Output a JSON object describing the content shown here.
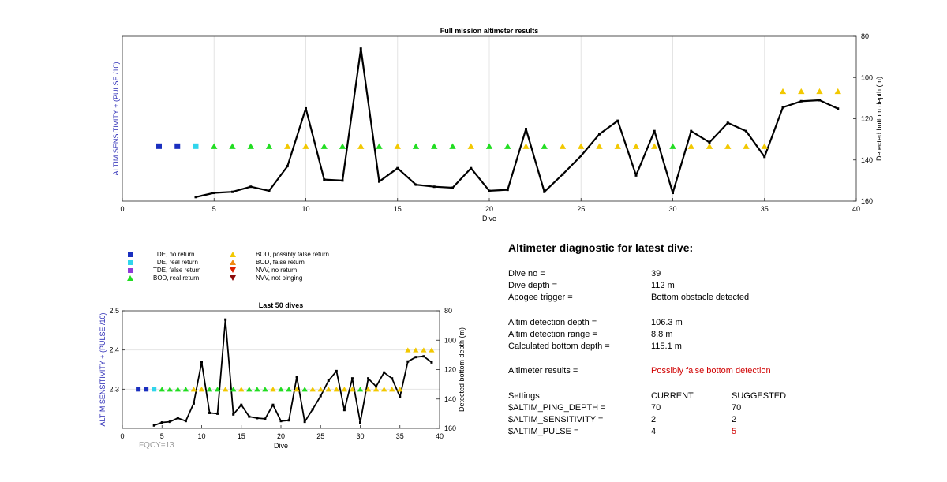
{
  "colors": {
    "tde_no_return": "#1a2fbf",
    "tde_real_return": "#30d5ec",
    "tde_false_return": "#8e3bd9",
    "bod_real_return": "#22dd22",
    "bod_possibly_false": "#f2c800",
    "bod_false_return": "#f08a12",
    "nvv_no_return": "#dd2200",
    "nvv_not_pinging": "#8c0a0a",
    "depth_line": "#000000",
    "left_axis_label": "#2b2bb6",
    "alert": "#d00000",
    "fqcy": "#9a9a9a"
  },
  "legend": [
    {
      "label": "TDE, no return",
      "marker": "square",
      "color_key": "tde_no_return"
    },
    {
      "label": "TDE, real return",
      "marker": "square",
      "color_key": "tde_real_return"
    },
    {
      "label": "TDE, false return",
      "marker": "square",
      "color_key": "tde_false_return"
    },
    {
      "label": "BOD, real return",
      "marker": "triangle-up",
      "color_key": "bod_real_return"
    },
    {
      "label": "BOD, possibly false return",
      "marker": "triangle-up",
      "color_key": "bod_possibly_false"
    },
    {
      "label": "BOD, false return",
      "marker": "triangle-up",
      "color_key": "bod_false_return"
    },
    {
      "label": "NVV, no return",
      "marker": "triangle-down",
      "color_key": "nvv_no_return"
    },
    {
      "label": "NVV, not pinging",
      "marker": "triangle-down",
      "color_key": "nvv_not_pinging"
    }
  ],
  "chart_data": [
    {
      "type": "line",
      "title": "Full mission altimeter results",
      "xlabel": "Dive",
      "ylabel_left": "ALTIM SENSITIVITY + (PULSE /10)",
      "ylabel_right": "Detected bottom depth (m)",
      "xlim": [
        0,
        40
      ],
      "xticks": [
        0,
        5,
        10,
        15,
        20,
        25,
        30,
        35,
        40
      ],
      "ylim_right": [
        80,
        160
      ],
      "yticks_right": [
        80,
        100,
        120,
        140,
        160
      ],
      "right_axis_reversed": true,
      "grid": "vertical",
      "ylim_left": [
        2.2,
        2.5
      ],
      "left_tick_labels": false,
      "status_markers": [
        {
          "dive": 2,
          "value": 2.3,
          "status": "tde_no_return"
        },
        {
          "dive": 3,
          "value": 2.3,
          "status": "tde_no_return"
        },
        {
          "dive": 4,
          "value": 2.3,
          "status": "tde_real_return"
        },
        {
          "dive": 5,
          "value": 2.3,
          "status": "bod_real_return"
        },
        {
          "dive": 6,
          "value": 2.3,
          "status": "bod_real_return"
        },
        {
          "dive": 7,
          "value": 2.3,
          "status": "bod_real_return"
        },
        {
          "dive": 8,
          "value": 2.3,
          "status": "bod_real_return"
        },
        {
          "dive": 9,
          "value": 2.3,
          "status": "bod_possibly_false"
        },
        {
          "dive": 10,
          "value": 2.3,
          "status": "bod_possibly_false"
        },
        {
          "dive": 11,
          "value": 2.3,
          "status": "bod_real_return"
        },
        {
          "dive": 12,
          "value": 2.3,
          "status": "bod_real_return"
        },
        {
          "dive": 13,
          "value": 2.3,
          "status": "bod_possibly_false"
        },
        {
          "dive": 14,
          "value": 2.3,
          "status": "bod_real_return"
        },
        {
          "dive": 15,
          "value": 2.3,
          "status": "bod_possibly_false"
        },
        {
          "dive": 16,
          "value": 2.3,
          "status": "bod_real_return"
        },
        {
          "dive": 17,
          "value": 2.3,
          "status": "bod_real_return"
        },
        {
          "dive": 18,
          "value": 2.3,
          "status": "bod_real_return"
        },
        {
          "dive": 19,
          "value": 2.3,
          "status": "bod_possibly_false"
        },
        {
          "dive": 20,
          "value": 2.3,
          "status": "bod_real_return"
        },
        {
          "dive": 21,
          "value": 2.3,
          "status": "bod_real_return"
        },
        {
          "dive": 22,
          "value": 2.3,
          "status": "bod_possibly_false"
        },
        {
          "dive": 23,
          "value": 2.3,
          "status": "bod_real_return"
        },
        {
          "dive": 24,
          "value": 2.3,
          "status": "bod_possibly_false"
        },
        {
          "dive": 25,
          "value": 2.3,
          "status": "bod_possibly_false"
        },
        {
          "dive": 26,
          "value": 2.3,
          "status": "bod_possibly_false"
        },
        {
          "dive": 27,
          "value": 2.3,
          "status": "bod_possibly_false"
        },
        {
          "dive": 28,
          "value": 2.3,
          "status": "bod_possibly_false"
        },
        {
          "dive": 29,
          "value": 2.3,
          "status": "bod_possibly_false"
        },
        {
          "dive": 30,
          "value": 2.3,
          "status": "bod_real_return"
        },
        {
          "dive": 31,
          "value": 2.3,
          "status": "bod_possibly_false"
        },
        {
          "dive": 32,
          "value": 2.3,
          "status": "bod_possibly_false"
        },
        {
          "dive": 33,
          "value": 2.3,
          "status": "bod_possibly_false"
        },
        {
          "dive": 34,
          "value": 2.3,
          "status": "bod_possibly_false"
        },
        {
          "dive": 35,
          "value": 2.3,
          "status": "bod_possibly_false"
        },
        {
          "dive": 36,
          "value": 2.4,
          "status": "bod_possibly_false"
        },
        {
          "dive": 37,
          "value": 2.4,
          "status": "bod_possibly_false"
        },
        {
          "dive": 38,
          "value": 2.4,
          "status": "bod_possibly_false"
        },
        {
          "dive": 39,
          "value": 2.4,
          "status": "bod_possibly_false"
        }
      ],
      "depth_series": {
        "x": [
          4,
          5,
          6,
          7,
          8,
          9,
          10,
          11,
          12,
          13,
          14,
          15,
          16,
          17,
          18,
          19,
          20,
          21,
          22,
          23,
          24,
          25,
          26,
          27,
          28,
          29,
          30,
          31,
          32,
          33,
          34,
          35,
          36,
          37,
          38,
          39
        ],
        "y": [
          158,
          156,
          155.5,
          153,
          155,
          143,
          115,
          149.5,
          150,
          86,
          150.5,
          144,
          152,
          153,
          153.5,
          144,
          155,
          154.5,
          125,
          155.5,
          147,
          138,
          127.5,
          121,
          147.5,
          126,
          156,
          126,
          131.5,
          122,
          126,
          138.5,
          114.5,
          111.5,
          111,
          115.1
        ]
      }
    },
    {
      "type": "line",
      "title": "Last 50 dives",
      "xlabel": "Dive",
      "ylabel_left": "ALTIM SENSITIVITY + (PULSE /10)",
      "ylabel_right": "Detected bottom depth (m)",
      "xlim": [
        0,
        40
      ],
      "xticks": [
        0,
        5,
        10,
        15,
        20,
        25,
        30,
        35,
        40
      ],
      "ylim_left": [
        2.2,
        2.5
      ],
      "yticks_left": [
        2.3,
        2.4,
        2.5
      ],
      "ylim_right": [
        80,
        160
      ],
      "yticks_right": [
        80,
        100,
        120,
        140,
        160
      ],
      "right_axis_reversed": true,
      "grid": "horizontal",
      "same_data_as": "Full mission altimeter results"
    }
  ],
  "footer": {
    "fqcy": "FQCY=13"
  },
  "diagnostic": {
    "title": "Altimeter diagnostic for latest dive:",
    "rows": [
      {
        "label": "Dive no =",
        "value": "39"
      },
      {
        "label": "Dive depth =",
        "value": "112 m"
      },
      {
        "label": "Apogee trigger =",
        "value": "Bottom obstacle detected"
      },
      {
        "label": "Altim detection depth =",
        "value": "106.3 m"
      },
      {
        "label": "Altim detection range =",
        "value": "8.8 m"
      },
      {
        "label": "Calculated bottom depth =",
        "value": "115.1 m"
      },
      {
        "label": "Altimeter results =",
        "value": "Possibly false bottom detection"
      }
    ],
    "settings": {
      "header": {
        "label": "Settings",
        "current": "CURRENT",
        "suggested": "SUGGESTED"
      },
      "rows": [
        {
          "label": "$ALTIM_PING_DEPTH =",
          "current": "70",
          "suggested": "70"
        },
        {
          "label": "$ALTIM_SENSITIVITY =",
          "current": "2",
          "suggested": "2"
        },
        {
          "label": "$ALTIM_PULSE =",
          "current": "4",
          "suggested": "5"
        }
      ]
    }
  }
}
